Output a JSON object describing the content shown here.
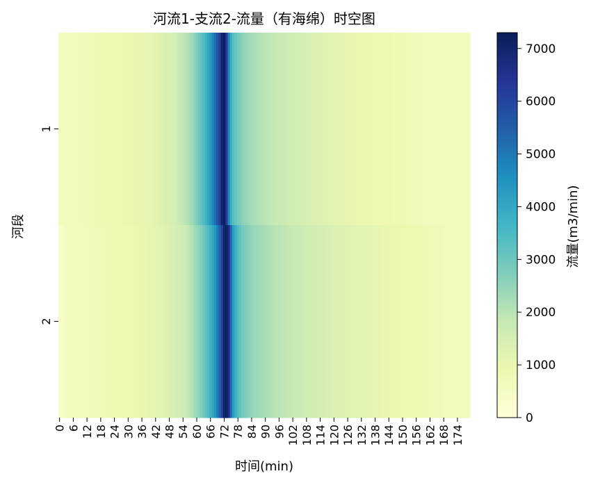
{
  "chart_data": {
    "type": "heatmap",
    "title": "河流1-支流2-流量（有海绵）时空图",
    "xlabel": "时间(min)",
    "ylabel": "河段",
    "rows": [
      "1",
      "2"
    ],
    "x_tick_labels": [
      "0",
      "6",
      "12",
      "18",
      "24",
      "30",
      "36",
      "42",
      "48",
      "54",
      "60",
      "66",
      "72",
      "78",
      "84",
      "90",
      "96",
      "102",
      "108",
      "114",
      "120",
      "126",
      "132",
      "138",
      "144",
      "150",
      "156",
      "162",
      "168",
      "174"
    ],
    "x_range": [
      0,
      179
    ],
    "colorbar": {
      "label": "流量(m3/min)",
      "min": 0,
      "max": 7300,
      "ticks": [
        0,
        1000,
        2000,
        3000,
        4000,
        5000,
        6000,
        7000
      ],
      "colormap": "YlGnBu"
    },
    "series": [
      {
        "name": "1",
        "points": [
          [
            0,
            600
          ],
          [
            40,
            1100
          ],
          [
            50,
            1500
          ],
          [
            58,
            2300
          ],
          [
            63,
            3400
          ],
          [
            66,
            4300
          ],
          [
            68,
            5200
          ],
          [
            70,
            6100
          ],
          [
            71,
            7000
          ],
          [
            72,
            7200
          ],
          [
            73,
            6300
          ],
          [
            74,
            4800
          ],
          [
            75,
            3800
          ],
          [
            76,
            3300
          ],
          [
            78,
            2900
          ],
          [
            80,
            2600
          ],
          [
            85,
            2200
          ],
          [
            95,
            1800
          ],
          [
            110,
            1400
          ],
          [
            130,
            1000
          ],
          [
            160,
            700
          ],
          [
            179,
            600
          ]
        ]
      },
      {
        "name": "2",
        "points": [
          [
            0,
            300
          ],
          [
            3,
            600
          ],
          [
            30,
            900
          ],
          [
            45,
            1200
          ],
          [
            55,
            1700
          ],
          [
            62,
            2700
          ],
          [
            66,
            3700
          ],
          [
            68,
            4400
          ],
          [
            70,
            5400
          ],
          [
            71,
            6100
          ],
          [
            72,
            7000
          ],
          [
            73,
            7200
          ],
          [
            74,
            6600
          ],
          [
            75,
            5200
          ],
          [
            76,
            4200
          ],
          [
            78,
            3400
          ],
          [
            80,
            2900
          ],
          [
            85,
            2400
          ],
          [
            95,
            2000
          ],
          [
            110,
            1600
          ],
          [
            130,
            1200
          ],
          [
            160,
            800
          ],
          [
            179,
            600
          ]
        ]
      }
    ]
  }
}
